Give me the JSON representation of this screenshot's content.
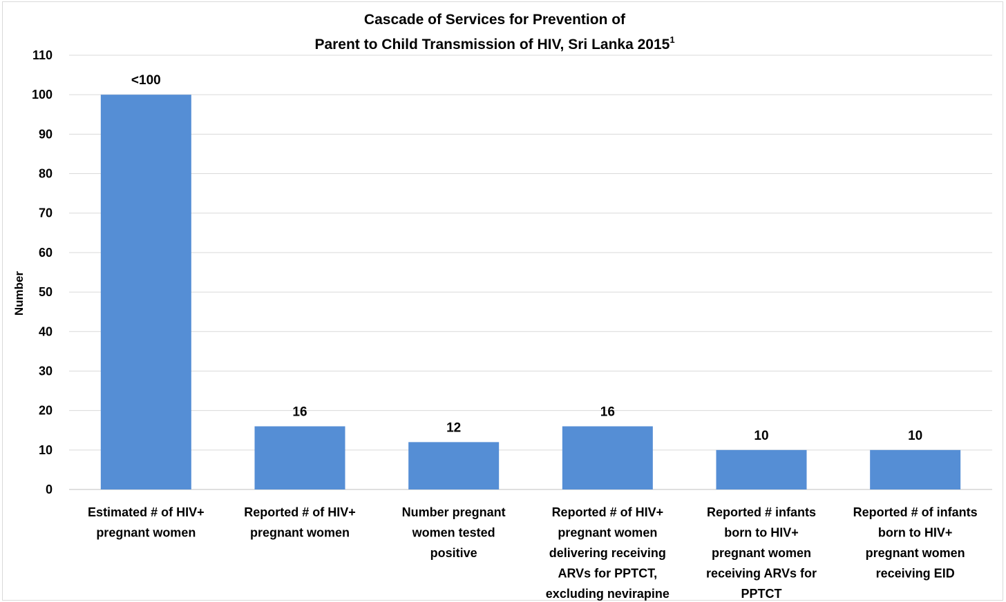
{
  "chart_data": {
    "type": "bar",
    "title_lines": [
      "Cascade of Services for Prevention of",
      "Parent to Child Transmission of HIV, Sri Lanka 2015"
    ],
    "title_superscript": "1",
    "xlabel": "",
    "ylabel": "Number",
    "ylim": [
      0,
      110
    ],
    "yticks": [
      0,
      10,
      20,
      30,
      40,
      50,
      60,
      70,
      80,
      90,
      100,
      110
    ],
    "grid": true,
    "bar_color": "#558ED5",
    "categories": [
      [
        "Estimated # of HIV+",
        "pregnant women"
      ],
      [
        "Reported # of HIV+",
        "pregnant women"
      ],
      [
        "Number pregnant",
        "women tested",
        "positive"
      ],
      [
        "Reported # of HIV+",
        "pregnant women",
        "delivering receiving",
        "ARVs for PPTCT,",
        "excluding nevirapine"
      ],
      [
        "Reported # infants",
        "born to HIV+",
        "pregnant women",
        "receiving ARVs for",
        "PPTCT"
      ],
      [
        "Reported # of infants",
        "born to HIV+",
        "pregnant women",
        "receiving EID"
      ]
    ],
    "values": [
      100,
      16,
      12,
      16,
      10,
      10
    ],
    "data_labels": [
      "<100",
      "16",
      "12",
      "16",
      "10",
      "10"
    ]
  }
}
